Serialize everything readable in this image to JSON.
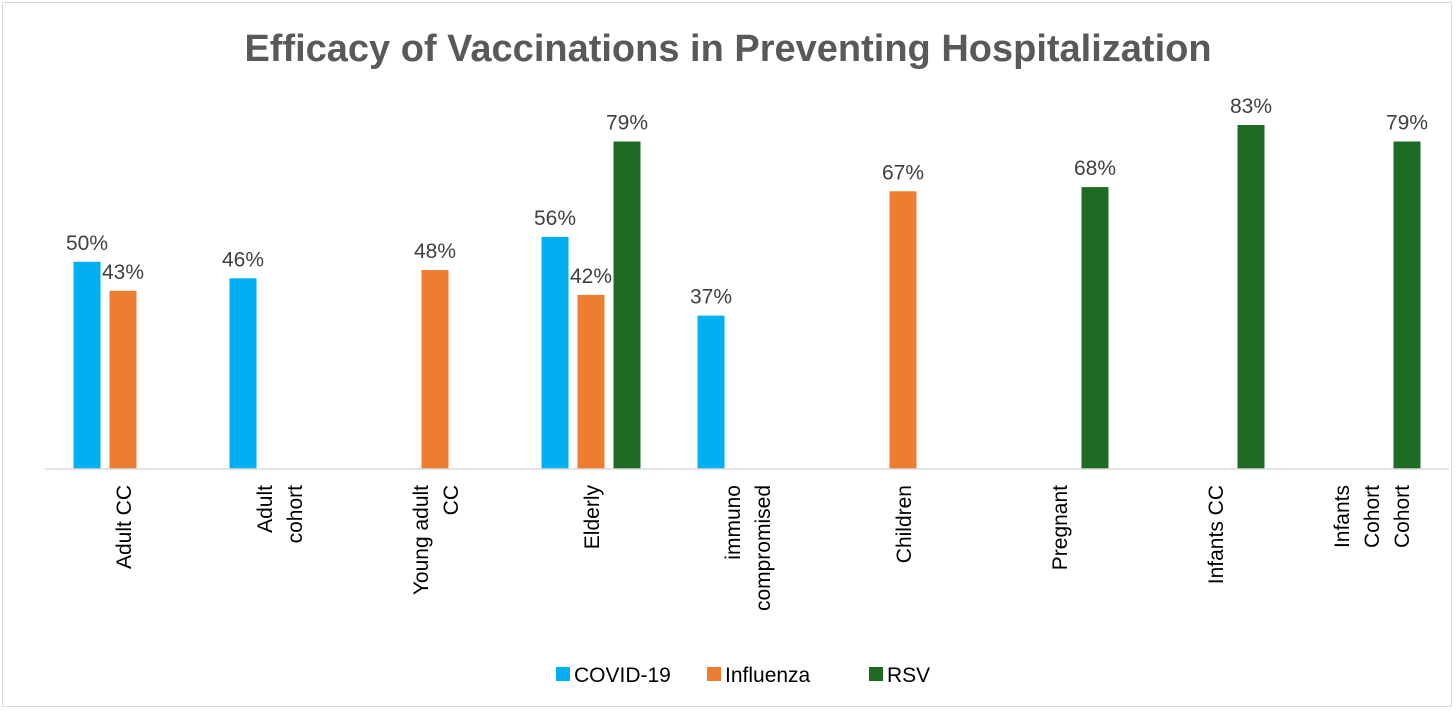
{
  "chart_data": {
    "type": "bar",
    "title": "Efficacy of Vaccinations in Preventing Hospitalization",
    "xlabel": "",
    "ylabel": "",
    "ylim": [
      0,
      100
    ],
    "grid": false,
    "legend_position": "bottom-center",
    "categories": [
      [
        "Adult CC"
      ],
      [
        "Adult",
        "cohort"
      ],
      [
        "Young adult",
        "CC"
      ],
      [
        "Elderly"
      ],
      [
        "immuno",
        "compromised"
      ],
      [
        "Children"
      ],
      [
        "Pregnant"
      ],
      [
        "Infants CC"
      ],
      [
        "Infants",
        "Cohort",
        "Cohort"
      ]
    ],
    "series": [
      {
        "name": "COVID-19",
        "color": "#00b0f0",
        "values": [
          50,
          46,
          null,
          56,
          37,
          null,
          null,
          null,
          null
        ]
      },
      {
        "name": "Influenza",
        "color": "#ed7d31",
        "values": [
          43,
          null,
          48,
          42,
          null,
          67,
          null,
          null,
          null
        ]
      },
      {
        "name": "RSV",
        "color": "#1e6b24",
        "values": [
          null,
          null,
          null,
          79,
          null,
          null,
          68,
          83,
          79
        ]
      }
    ],
    "value_suffix": "%"
  }
}
